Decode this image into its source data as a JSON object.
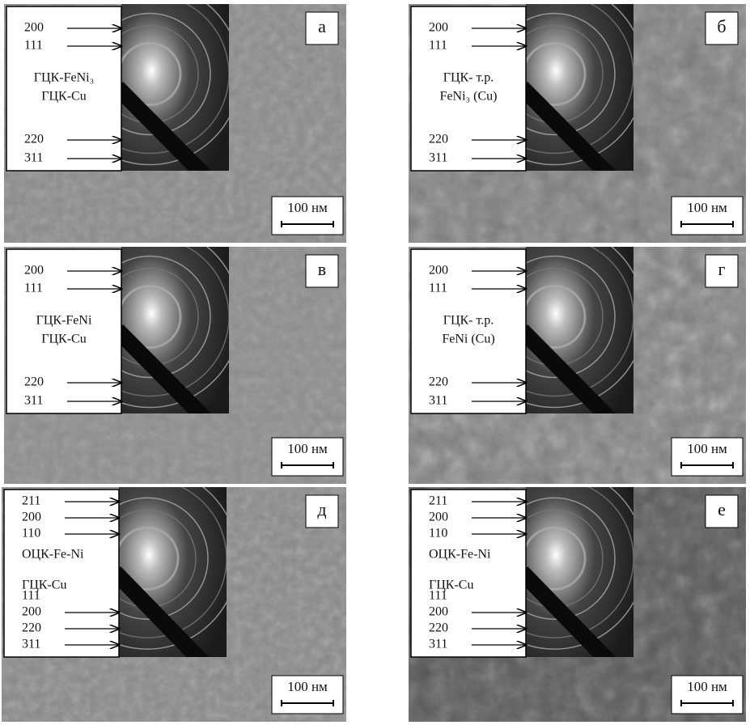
{
  "panels": [
    {
      "letter": "а",
      "reflections_top": [
        "200",
        "111"
      ],
      "phases": [
        "ГЦК-FeNi₃",
        "ГЦК-Cu"
      ],
      "reflections_bottom": [
        "220",
        "311"
      ],
      "scale": "100 нм"
    },
    {
      "letter": "б",
      "reflections_top": [
        "200",
        "111"
      ],
      "phases": [
        "ГЦК- т.р.",
        "FeNi₃ (Cu)"
      ],
      "reflections_bottom": [
        "220",
        "311"
      ],
      "scale": "100 нм"
    },
    {
      "letter": "в",
      "reflections_top": [
        "200",
        "111"
      ],
      "phases": [
        "ГЦК-FeNi",
        "ГЦК-Cu"
      ],
      "reflections_bottom": [
        "220",
        "311"
      ],
      "scale": "100 нм"
    },
    {
      "letter": "г",
      "reflections_top": [
        "200",
        "111"
      ],
      "phases": [
        "ГЦК- т.р.",
        "FeNi (Cu)"
      ],
      "reflections_bottom": [
        "220",
        "311"
      ],
      "scale": "100 нм"
    },
    {
      "letter": "д",
      "reflections_top": [
        "211",
        "200",
        "110"
      ],
      "phases": [
        "ОЦК-Fe-Ni",
        "ГЦК-Cu"
      ],
      "reflections_bottom": [
        "111",
        "200",
        "220",
        "311"
      ],
      "scale": "100 нм"
    },
    {
      "letter": "е",
      "reflections_top": [
        "211",
        "200",
        "110"
      ],
      "phases": [
        "ОЦК-Fe-Ni",
        "ГЦК-Cu"
      ],
      "reflections_bottom": [
        "111",
        "200",
        "220",
        "311"
      ],
      "scale": "100 нм"
    }
  ]
}
